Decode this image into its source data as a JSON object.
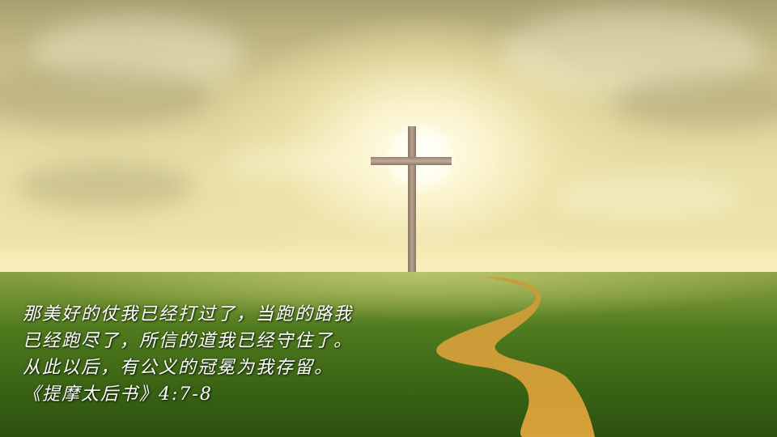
{
  "verse": {
    "lines": [
      "那美好的仗我已经打过了，当跑的路我",
      "已经跑尽了，所信的道我已经守住了。",
      "从此以后，有公义的冠冕为我存留。"
    ],
    "reference": "《提摩太后书》4:7-8"
  },
  "scene": {
    "subject": "cross-on-hill",
    "colors": {
      "sky": "#e9e0a8",
      "grass": "#3a6414",
      "path": "#d9a23c",
      "cross": "#b9a390",
      "text": "#ffffff"
    }
  }
}
